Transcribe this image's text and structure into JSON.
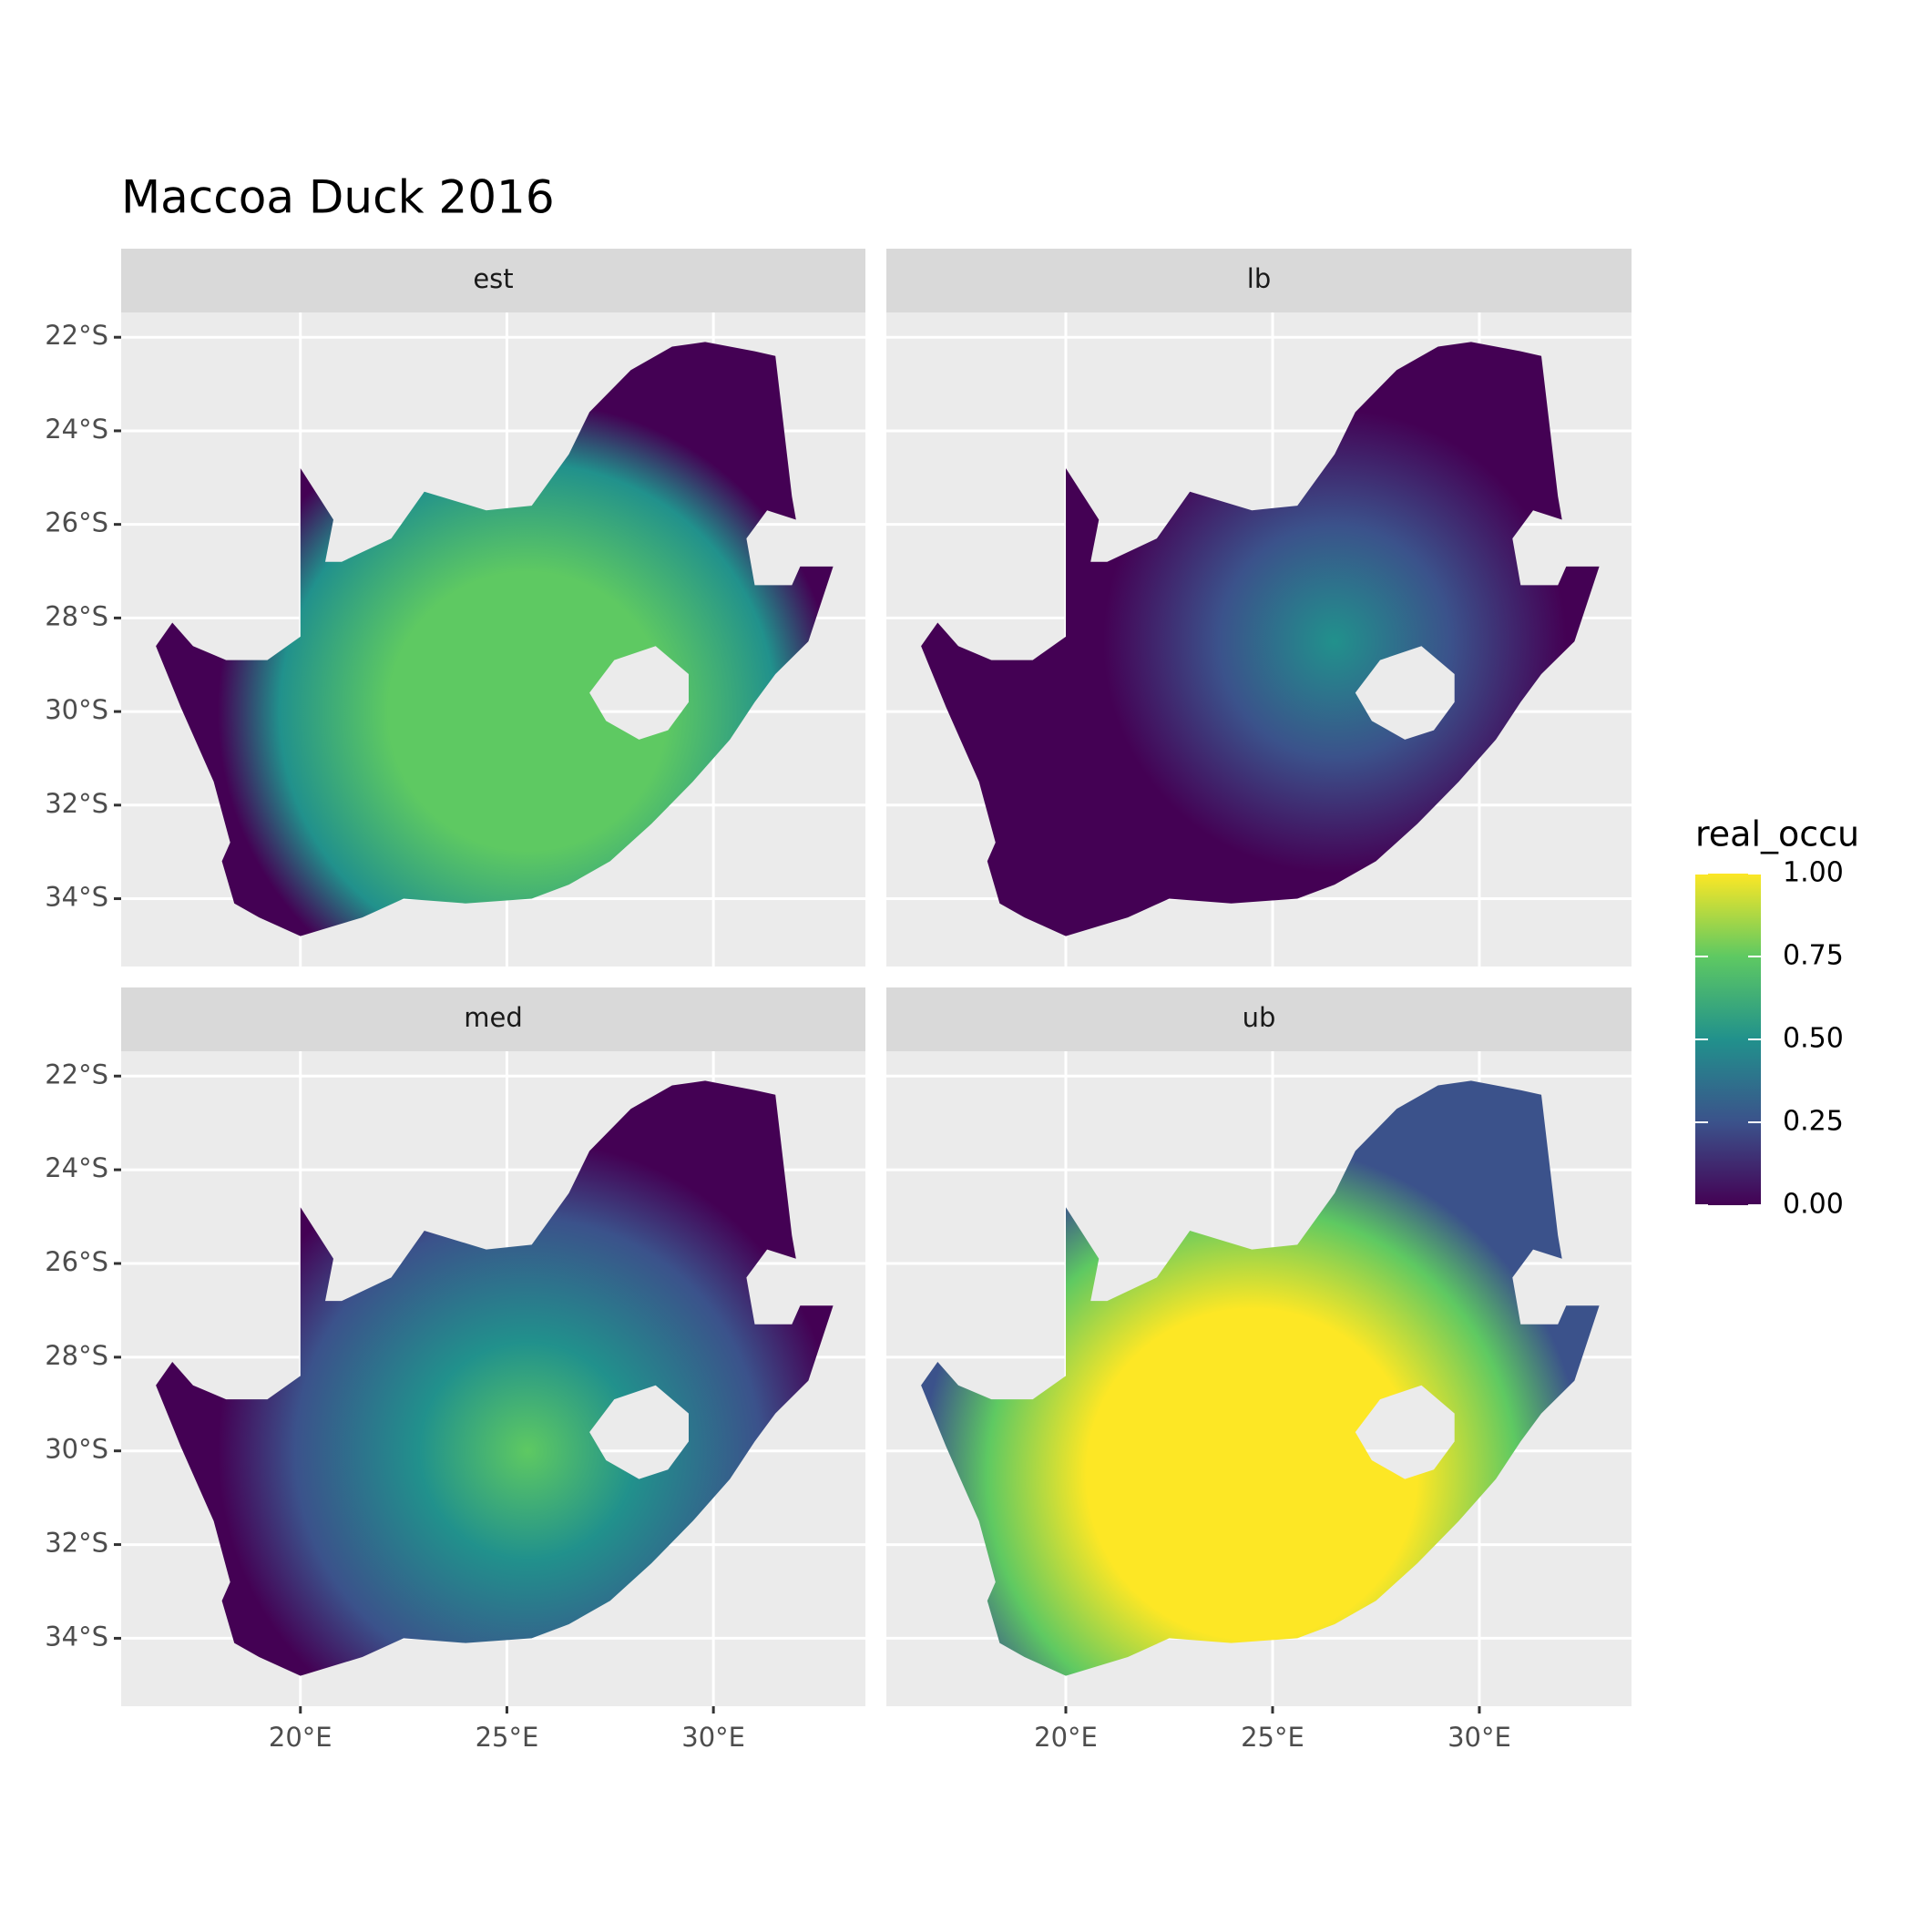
{
  "chart_data": {
    "type": "raster-map",
    "title": "Maccoa Duck 2016",
    "facets": [
      "est",
      "lb",
      "med",
      "ub"
    ],
    "xlim": [
      15.66,
      33.68
    ],
    "ylim": [
      -35.45,
      -21.47
    ],
    "xticks": [
      {
        "value": 20,
        "label": "20°E"
      },
      {
        "value": 25,
        "label": "25°E"
      },
      {
        "value": 30,
        "label": "30°E"
      }
    ],
    "yticks": [
      {
        "value": -22,
        "label": "22°S"
      },
      {
        "value": -24,
        "label": "24°S"
      },
      {
        "value": -26,
        "label": "26°S"
      },
      {
        "value": -28,
        "label": "28°S"
      },
      {
        "value": -30,
        "label": "30°S"
      },
      {
        "value": -32,
        "label": "32°S"
      },
      {
        "value": -34,
        "label": "34°S"
      }
    ],
    "grid": true,
    "legend": {
      "title": "real_occu",
      "clim": [
        0,
        1
      ],
      "ticks": [
        {
          "value": 0,
          "label": "0.00"
        },
        {
          "value": 0.25,
          "label": "0.25"
        },
        {
          "value": 0.5,
          "label": "0.50"
        },
        {
          "value": 0.75,
          "label": "0.75"
        },
        {
          "value": 1,
          "label": "1.00"
        }
      ],
      "colors": [
        "#440154",
        "#3b528b",
        "#21918c",
        "#5ec962",
        "#fde725"
      ]
    }
  }
}
